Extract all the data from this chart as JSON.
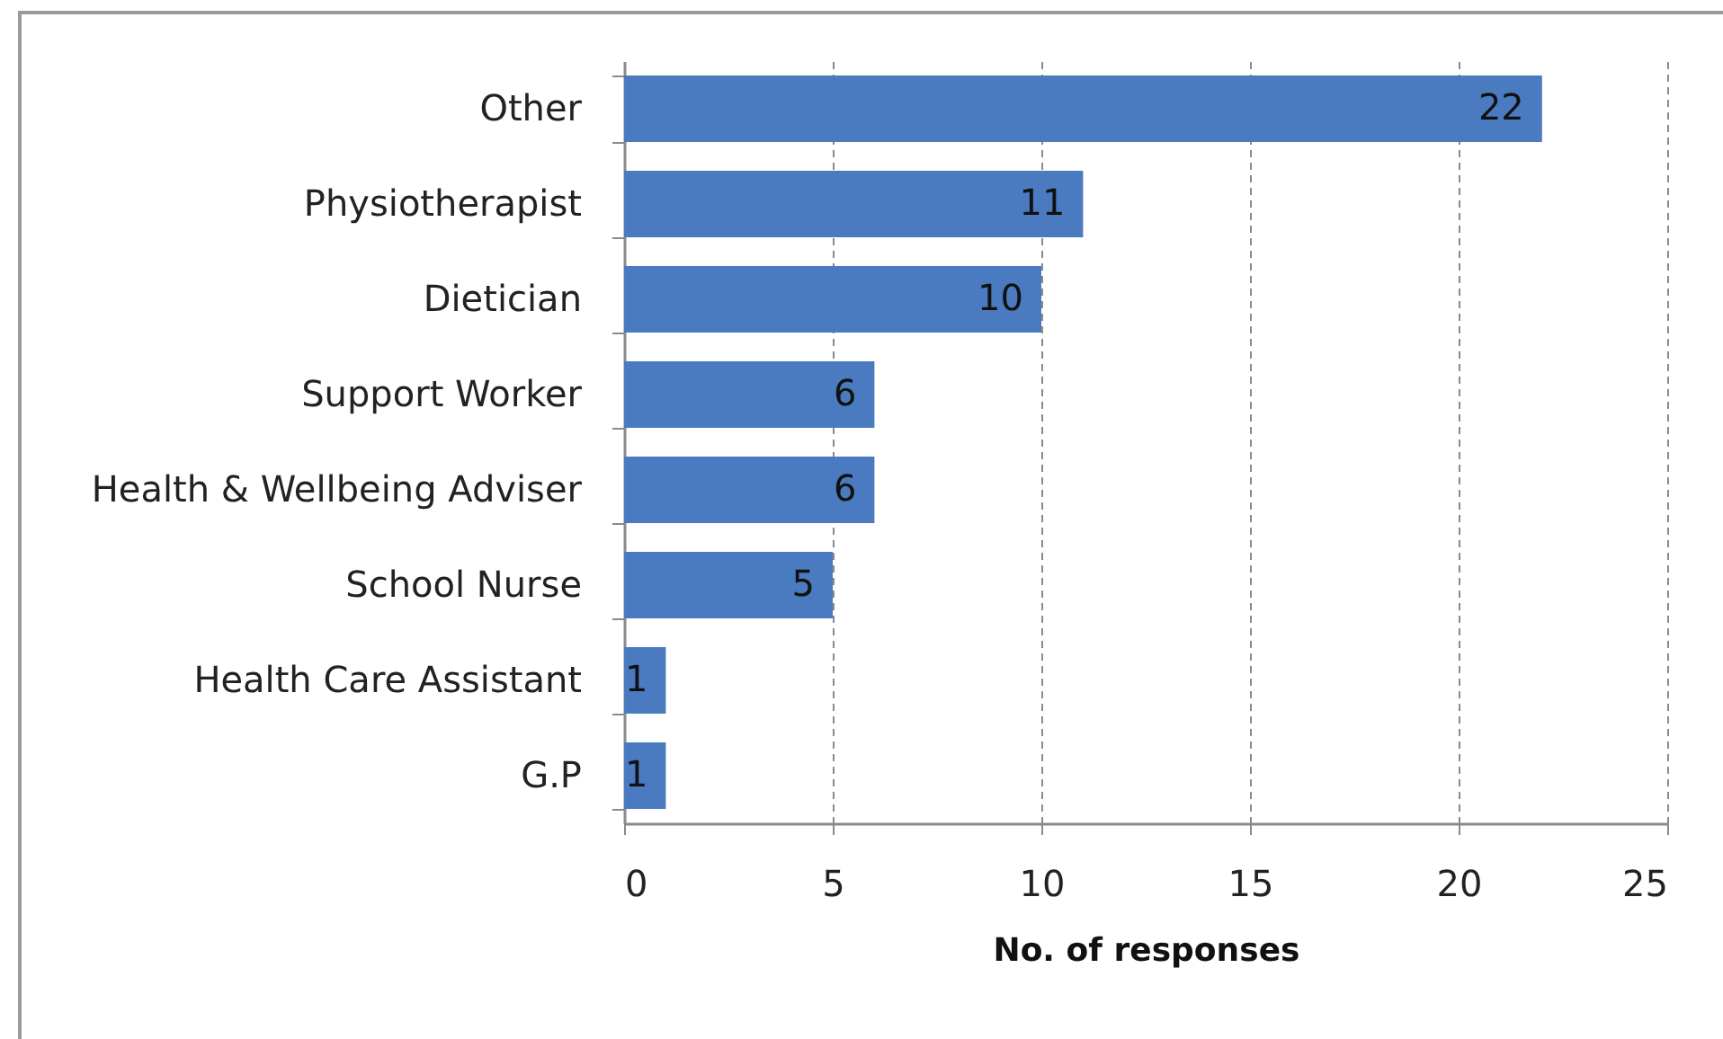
{
  "chart_data": {
    "type": "bar",
    "orientation": "horizontal",
    "categories": [
      "Other",
      "Physiotherapist",
      "Dietician",
      "Support Worker",
      "Health & Wellbeing Adviser",
      "School Nurse",
      "Health Care Assistant",
      "G.P"
    ],
    "values": [
      22,
      11,
      10,
      6,
      6,
      5,
      1,
      1
    ],
    "color": "#4a7bc0",
    "xlabel": "No. of responses",
    "xlim": [
      0,
      25
    ],
    "xticks": [
      0,
      5,
      10,
      15,
      20,
      25
    ],
    "grid": "x",
    "data_labels": true
  }
}
